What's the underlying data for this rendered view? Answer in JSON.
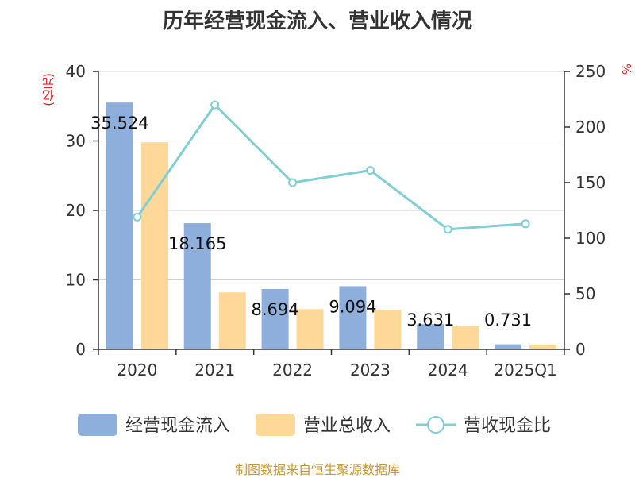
{
  "title": "历年经营现金流入、营业收入情况",
  "source": "制图数据来自恒生聚源数据库",
  "left_unit": "(亿元)",
  "right_unit": "%",
  "legend": [
    {
      "name": "经营现金流入",
      "color": "#8eaedb",
      "icon": "bar"
    },
    {
      "name": "营业总收入",
      "color": "#fed898",
      "icon": "bar"
    },
    {
      "name": "营收现金比",
      "color": "#7fcfd4",
      "icon": "line-marker"
    }
  ],
  "chart_data": {
    "type": "bar",
    "categories": [
      "2020",
      "2021",
      "2022",
      "2023",
      "2024",
      "2025Q1"
    ],
    "series": [
      {
        "name": "经营现金流入",
        "type": "bar",
        "axis": "left",
        "values": [
          35.524,
          18.165,
          8.694,
          9.094,
          3.631,
          0.731
        ],
        "labels": [
          "35.524",
          "18.165",
          "8.694",
          "9.094",
          "3.631",
          "0.731"
        ],
        "color": "#8eaedb"
      },
      {
        "name": "营业总收入",
        "type": "bar",
        "axis": "left",
        "values": [
          29.8,
          8.2,
          5.8,
          5.7,
          3.4,
          0.7
        ],
        "color": "#fed898"
      },
      {
        "name": "营收现金比",
        "type": "line",
        "axis": "right",
        "values": [
          119,
          220,
          150,
          161,
          108,
          113
        ],
        "color": "#7fcfd4"
      }
    ],
    "left_axis": {
      "ylim": [
        0,
        40
      ],
      "ticks": [
        "0",
        "10",
        "20",
        "30",
        "40"
      ]
    },
    "right_axis": {
      "ylim": [
        0,
        250
      ],
      "ticks": [
        "0",
        "50",
        "100",
        "150",
        "200",
        "250"
      ]
    },
    "grid": true,
    "legend_position": "bottom"
  }
}
